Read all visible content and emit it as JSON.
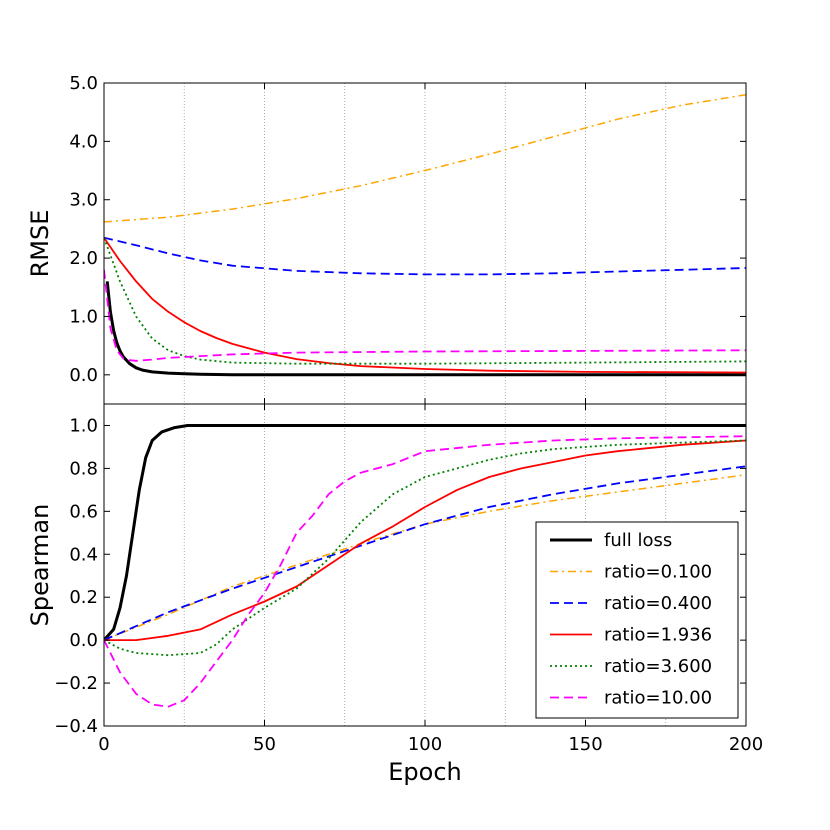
{
  "chart_data": [
    {
      "type": "line",
      "panel": "top",
      "ylabel": "RMSE",
      "xlim": [
        0,
        200
      ],
      "ylim": [
        -0.5,
        5.0
      ],
      "yticks": [
        0.0,
        1.0,
        2.0,
        3.0,
        4.0,
        5.0
      ],
      "ytick_labels": [
        "0.0",
        "1.0",
        "2.0",
        "3.0",
        "4.0",
        "5.0"
      ],
      "vgrid": [
        25,
        50,
        75,
        100,
        125,
        150,
        175
      ],
      "series": [
        {
          "name": "full loss",
          "color": "#000000",
          "style": "solid",
          "width": 3,
          "points": [
            [
              1,
              1.6
            ],
            [
              2,
              1.08
            ],
            [
              3,
              0.76
            ],
            [
              4,
              0.55
            ],
            [
              5,
              0.41
            ],
            [
              6,
              0.31
            ],
            [
              8,
              0.19
            ],
            [
              10,
              0.12
            ],
            [
              12,
              0.08
            ],
            [
              15,
              0.05
            ],
            [
              20,
              0.03
            ],
            [
              25,
              0.02
            ],
            [
              30,
              0.01
            ],
            [
              40,
              0.0
            ],
            [
              60,
              0.0
            ],
            [
              100,
              0.0
            ],
            [
              150,
              0.0
            ],
            [
              200,
              0.0
            ]
          ]
        },
        {
          "name": "ratio=0.100",
          "color": "#ffa500",
          "style": "dashdot",
          "width": 1.5,
          "points": [
            [
              0,
              2.62
            ],
            [
              20,
              2.7
            ],
            [
              40,
              2.84
            ],
            [
              60,
              3.02
            ],
            [
              80,
              3.24
            ],
            [
              100,
              3.5
            ],
            [
              120,
              3.78
            ],
            [
              140,
              4.08
            ],
            [
              160,
              4.38
            ],
            [
              180,
              4.62
            ],
            [
              200,
              4.8
            ]
          ]
        },
        {
          "name": "ratio=0.400",
          "color": "#0000ff",
          "style": "dashed",
          "width": 1.8,
          "points": [
            [
              0,
              2.35
            ],
            [
              10,
              2.22
            ],
            [
              20,
              2.08
            ],
            [
              30,
              1.96
            ],
            [
              40,
              1.87
            ],
            [
              60,
              1.78
            ],
            [
              80,
              1.74
            ],
            [
              100,
              1.72
            ],
            [
              120,
              1.72
            ],
            [
              140,
              1.74
            ],
            [
              160,
              1.77
            ],
            [
              180,
              1.8
            ],
            [
              200,
              1.83
            ]
          ]
        },
        {
          "name": "ratio=1.936",
          "color": "#ff0000",
          "style": "solid",
          "width": 1.8,
          "points": [
            [
              0,
              2.35
            ],
            [
              5,
              1.95
            ],
            [
              10,
              1.6
            ],
            [
              15,
              1.3
            ],
            [
              20,
              1.08
            ],
            [
              25,
              0.9
            ],
            [
              30,
              0.75
            ],
            [
              35,
              0.63
            ],
            [
              40,
              0.53
            ],
            [
              50,
              0.38
            ],
            [
              60,
              0.27
            ],
            [
              70,
              0.2
            ],
            [
              80,
              0.15
            ],
            [
              100,
              0.1
            ],
            [
              120,
              0.07
            ],
            [
              150,
              0.05
            ],
            [
              200,
              0.04
            ]
          ]
        },
        {
          "name": "ratio=3.600",
          "color": "#008000",
          "style": "dotted",
          "width": 1.8,
          "points": [
            [
              0,
              2.35
            ],
            [
              5,
              1.6
            ],
            [
              10,
              1.0
            ],
            [
              15,
              0.62
            ],
            [
              20,
              0.42
            ],
            [
              25,
              0.32
            ],
            [
              30,
              0.26
            ],
            [
              40,
              0.21
            ],
            [
              60,
              0.19
            ],
            [
              100,
              0.19
            ],
            [
              150,
              0.21
            ],
            [
              200,
              0.23
            ]
          ]
        },
        {
          "name": "ratio=10.00",
          "color": "#ff00ff",
          "style": "dashed",
          "width": 1.8,
          "points": [
            [
              0,
              1.8
            ],
            [
              2,
              0.8
            ],
            [
              4,
              0.42
            ],
            [
              6,
              0.28
            ],
            [
              8,
              0.25
            ],
            [
              10,
              0.24
            ],
            [
              15,
              0.26
            ],
            [
              20,
              0.29
            ],
            [
              30,
              0.32
            ],
            [
              40,
              0.35
            ],
            [
              60,
              0.38
            ],
            [
              100,
              0.4
            ],
            [
              150,
              0.41
            ],
            [
              200,
              0.42
            ]
          ]
        }
      ]
    },
    {
      "type": "line",
      "panel": "bottom",
      "xlabel": "Epoch",
      "ylabel": "Spearman",
      "xlim": [
        0,
        200
      ],
      "ylim": [
        -0.4,
        1.1
      ],
      "xticks": [
        0,
        50,
        100,
        150,
        200
      ],
      "xtick_labels": [
        "0",
        "50",
        "100",
        "150",
        "200"
      ],
      "yticks": [
        -0.4,
        -0.2,
        0.0,
        0.2,
        0.4,
        0.6,
        0.8,
        1.0
      ],
      "ytick_labels": [
        "−0.4",
        "−0.2",
        "0.0",
        "0.2",
        "0.4",
        "0.6",
        "0.8",
        "1.0"
      ],
      "vgrid": [
        25,
        50,
        75,
        100,
        125,
        150,
        175
      ],
      "legend": "bottom-right",
      "series": [
        {
          "name": "full loss",
          "color": "#000000",
          "style": "solid",
          "width": 3,
          "points": [
            [
              0,
              0.0
            ],
            [
              3,
              0.05
            ],
            [
              5,
              0.15
            ],
            [
              7,
              0.3
            ],
            [
              9,
              0.5
            ],
            [
              11,
              0.7
            ],
            [
              13,
              0.85
            ],
            [
              15,
              0.93
            ],
            [
              18,
              0.97
            ],
            [
              22,
              0.99
            ],
            [
              26,
              1.0
            ],
            [
              40,
              1.0
            ],
            [
              100,
              1.0
            ],
            [
              200,
              1.0
            ]
          ]
        },
        {
          "name": "ratio=0.100",
          "color": "#ffa500",
          "style": "dashdot",
          "width": 1.5,
          "points": [
            [
              0,
              0.0
            ],
            [
              20,
              0.12
            ],
            [
              40,
              0.25
            ],
            [
              60,
              0.35
            ],
            [
              80,
              0.45
            ],
            [
              100,
              0.54
            ],
            [
              120,
              0.6
            ],
            [
              140,
              0.65
            ],
            [
              160,
              0.69
            ],
            [
              180,
              0.73
            ],
            [
              200,
              0.77
            ]
          ]
        },
        {
          "name": "ratio=0.400",
          "color": "#0000ff",
          "style": "dashed",
          "width": 1.8,
          "points": [
            [
              0,
              0.0
            ],
            [
              20,
              0.13
            ],
            [
              40,
              0.24
            ],
            [
              60,
              0.34
            ],
            [
              80,
              0.44
            ],
            [
              100,
              0.54
            ],
            [
              120,
              0.62
            ],
            [
              140,
              0.68
            ],
            [
              160,
              0.73
            ],
            [
              180,
              0.77
            ],
            [
              200,
              0.81
            ]
          ]
        },
        {
          "name": "ratio=1.936",
          "color": "#ff0000",
          "style": "solid",
          "width": 1.8,
          "points": [
            [
              0,
              0.0
            ],
            [
              10,
              0.0
            ],
            [
              20,
              0.02
            ],
            [
              30,
              0.05
            ],
            [
              40,
              0.12
            ],
            [
              50,
              0.18
            ],
            [
              60,
              0.25
            ],
            [
              70,
              0.35
            ],
            [
              80,
              0.45
            ],
            [
              90,
              0.53
            ],
            [
              100,
              0.62
            ],
            [
              110,
              0.7
            ],
            [
              120,
              0.76
            ],
            [
              130,
              0.8
            ],
            [
              140,
              0.83
            ],
            [
              150,
              0.86
            ],
            [
              160,
              0.88
            ],
            [
              180,
              0.91
            ],
            [
              200,
              0.93
            ]
          ]
        },
        {
          "name": "ratio=3.600",
          "color": "#008000",
          "style": "dotted",
          "width": 1.8,
          "points": [
            [
              0,
              0.0
            ],
            [
              5,
              -0.04
            ],
            [
              10,
              -0.06
            ],
            [
              20,
              -0.07
            ],
            [
              30,
              -0.06
            ],
            [
              35,
              -0.02
            ],
            [
              40,
              0.05
            ],
            [
              50,
              0.15
            ],
            [
              60,
              0.24
            ],
            [
              70,
              0.38
            ],
            [
              80,
              0.55
            ],
            [
              90,
              0.68
            ],
            [
              100,
              0.76
            ],
            [
              110,
              0.8
            ],
            [
              120,
              0.84
            ],
            [
              130,
              0.87
            ],
            [
              140,
              0.89
            ],
            [
              160,
              0.91
            ],
            [
              180,
              0.92
            ],
            [
              200,
              0.93
            ]
          ]
        },
        {
          "name": "ratio=10.00",
          "color": "#ff00ff",
          "style": "dashed",
          "width": 1.8,
          "points": [
            [
              0,
              0.0
            ],
            [
              5,
              -0.15
            ],
            [
              10,
              -0.25
            ],
            [
              15,
              -0.3
            ],
            [
              20,
              -0.31
            ],
            [
              25,
              -0.28
            ],
            [
              30,
              -0.2
            ],
            [
              35,
              -0.1
            ],
            [
              40,
              0.0
            ],
            [
              45,
              0.12
            ],
            [
              50,
              0.22
            ],
            [
              55,
              0.35
            ],
            [
              60,
              0.5
            ],
            [
              65,
              0.58
            ],
            [
              70,
              0.68
            ],
            [
              75,
              0.74
            ],
            [
              80,
              0.78
            ],
            [
              90,
              0.82
            ],
            [
              100,
              0.88
            ],
            [
              120,
              0.91
            ],
            [
              140,
              0.93
            ],
            [
              160,
              0.94
            ],
            [
              180,
              0.945
            ],
            [
              200,
              0.95
            ]
          ]
        }
      ]
    }
  ]
}
